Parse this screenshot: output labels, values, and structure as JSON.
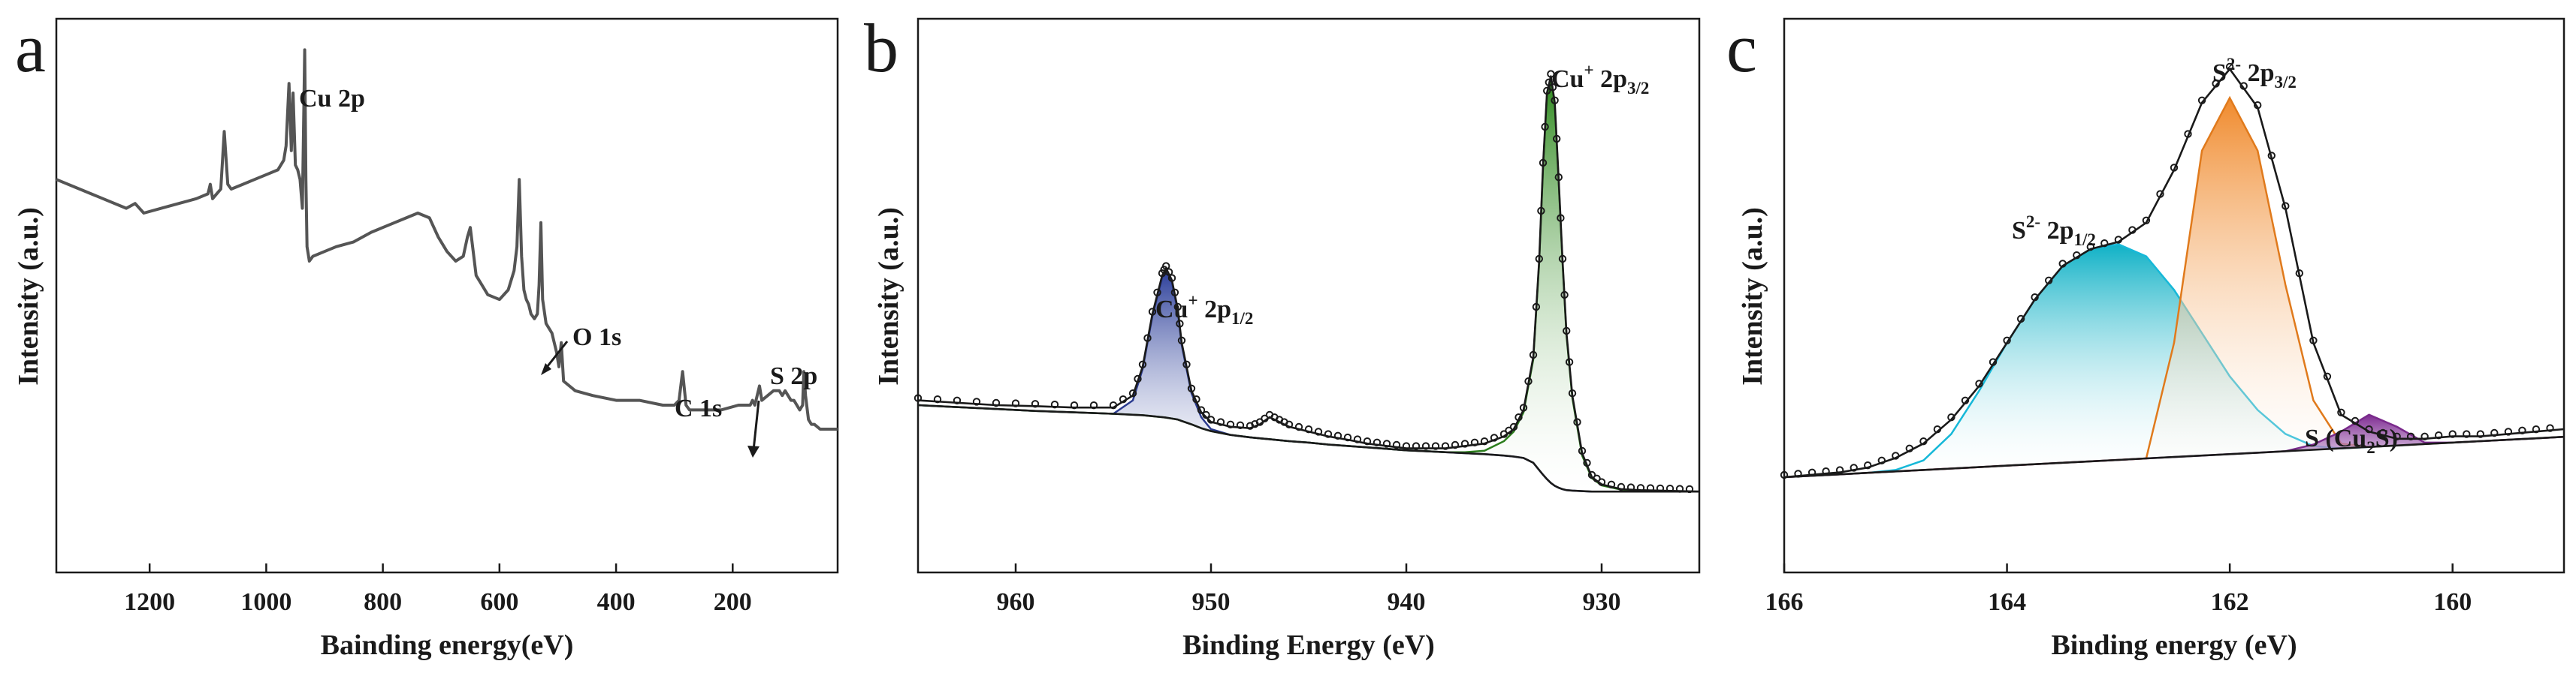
{
  "colors": {
    "survey_line": "#555555",
    "blue_fill": "#3a4fa8",
    "green_fill": "#3c9a2a",
    "cyan_fill": "#17b6c9",
    "orange_fill": "#f08a2c",
    "purple_fill": "#8a3a9c"
  },
  "chart_data": [
    {
      "panel": "a",
      "type": "line",
      "title": "",
      "xlabel": "Bainding energy(eV)",
      "ylabel": "Intensity (a.u.)",
      "xlim": [
        1360,
        20
      ],
      "ylim": [
        0,
        100
      ],
      "xticks": [
        1200,
        1000,
        800,
        600,
        400,
        200
      ],
      "xtick_labels": [
        "1200",
        "1000",
        "800",
        "600",
        "400",
        "200"
      ],
      "series": [
        {
          "name": "Survey spectrum",
          "x": [
            1360,
            1320,
            1280,
            1240,
            1225,
            1210,
            1180,
            1150,
            1120,
            1100,
            1096,
            1092,
            1085,
            1078,
            1072,
            1066,
            1060,
            1040,
            1020,
            1000,
            980,
            970,
            966,
            961,
            957,
            954,
            950,
            946,
            942,
            938,
            934,
            932,
            930,
            926,
            920,
            900,
            880,
            850,
            820,
            800,
            780,
            760,
            740,
            720,
            705,
            690,
            675,
            662,
            655,
            650,
            645,
            640,
            630,
            620,
            600,
            585,
            575,
            570,
            566,
            562,
            558,
            554,
            550,
            546,
            540,
            535,
            532,
            529,
            526,
            520,
            510,
            506,
            502,
            498,
            494,
            490,
            470,
            440,
            400,
            360,
            320,
            300,
            292,
            286,
            280,
            274,
            268,
            250,
            220,
            190,
            170,
            166,
            162,
            158,
            154,
            150,
            140,
            130,
            120,
            115,
            110,
            105,
            100,
            95,
            90,
            85,
            80,
            78,
            75,
            72,
            70,
            65,
            60,
            50,
            40,
            30,
            20
          ],
          "y": [
            72,
            70,
            68,
            66,
            67,
            65,
            66,
            67,
            68,
            69,
            71,
            68,
            69,
            70,
            82,
            71,
            70,
            71,
            72,
            73,
            74,
            76,
            79,
            92,
            78,
            90,
            75,
            74,
            72,
            66,
            99,
            72,
            58,
            55,
            56,
            57,
            58,
            59,
            61,
            62,
            63,
            64,
            65,
            64,
            60,
            57,
            55,
            56,
            60,
            62,
            57,
            52,
            50,
            48,
            47,
            49,
            53,
            58,
            72,
            56,
            49,
            47,
            46,
            44,
            43,
            44,
            50,
            63,
            47,
            42,
            40,
            38,
            36,
            33,
            38,
            30,
            28,
            27,
            26,
            26,
            25,
            25,
            26,
            32,
            25,
            24,
            24,
            24,
            24,
            25,
            25,
            26,
            25,
            27,
            29,
            26,
            27,
            28,
            28,
            27,
            28,
            27,
            26,
            26,
            25,
            24,
            25,
            32,
            27,
            24,
            22,
            21,
            21,
            20,
            20,
            20,
            20
          ],
          "color": "#555555"
        }
      ],
      "annotations": [
        {
          "text": "Cu 2p",
          "x": 932,
          "y": 99
        },
        {
          "text": "O 1s",
          "x": 531,
          "y": 63
        },
        {
          "text": "C 1s",
          "x": 285,
          "y": 32
        },
        {
          "text": "S 2p",
          "x": 162,
          "y": 29
        }
      ]
    },
    {
      "panel": "b",
      "type": "line",
      "title": "",
      "xlabel": "Binding Energy (eV)",
      "ylabel": "Intensity (a.u.)",
      "xlim": [
        965,
        925
      ],
      "ylim": [
        0,
        100
      ],
      "xticks": [
        960,
        950,
        940,
        930
      ],
      "xtick_labels": [
        "960",
        "950",
        "940",
        "930"
      ],
      "x": [
        965,
        963,
        961,
        959,
        957,
        955,
        954,
        953.5,
        953,
        952.5,
        952.3,
        952,
        951.7,
        951.5,
        951,
        950.5,
        950,
        949,
        948,
        947.5,
        947,
        946.5,
        946,
        945,
        944,
        943,
        942,
        941,
        940,
        939,
        938,
        937,
        936,
        935,
        934.5,
        934,
        933.5,
        933.2,
        933,
        932.8,
        932.6,
        932.4,
        932.2,
        932,
        931.8,
        931.5,
        931,
        930.5,
        930,
        929,
        928,
        927,
        926,
        925
      ],
      "series": [
        {
          "name": "Experimental",
          "style": "dots",
          "y": [
            26,
            25.5,
            25,
            24.8,
            24.5,
            24.5,
            27,
            33,
            44,
            52,
            53.5,
            51,
            45,
            38,
            28,
            23.5,
            21.5,
            20.5,
            20.2,
            21,
            22.5,
            21.5,
            20.5,
            19.5,
            18.5,
            17.8,
            17,
            16.5,
            16,
            16,
            16,
            16.5,
            17,
            18.5,
            20,
            24,
            35,
            55,
            75,
            90,
            93.5,
            88,
            72,
            55,
            40,
            27,
            15,
            10,
            8.5,
            7.5,
            7.3,
            7.2,
            7.1,
            7
          ]
        },
        {
          "name": "Fitted envelope",
          "style": "line",
          "y": [
            26,
            25.5,
            25,
            24.8,
            24.5,
            24.5,
            27,
            33,
            44,
            52,
            53.5,
            51,
            45,
            38,
            28,
            23.5,
            21.5,
            20.5,
            20.2,
            21,
            22.5,
            21.5,
            20.5,
            19.5,
            18.5,
            17.8,
            17,
            16.5,
            16,
            16,
            16,
            16.5,
            17,
            18.5,
            20,
            24,
            35,
            55,
            75,
            90,
            93.5,
            88,
            72,
            55,
            40,
            27,
            15,
            10,
            8.5,
            7.5,
            7.3,
            7.2,
            7.1,
            7
          ]
        },
        {
          "name": "Background",
          "style": "line",
          "y": [
            25,
            24.6,
            24.2,
            23.8,
            23.5,
            23.2,
            23,
            22.9,
            22.7,
            22.5,
            22.4,
            22.2,
            22,
            21.7,
            21,
            20.2,
            19.6,
            18.8,
            18.3,
            18.1,
            17.9,
            17.7,
            17.5,
            17.2,
            16.8,
            16.5,
            16.2,
            15.9,
            15.6,
            15.4,
            15.2,
            15,
            14.8,
            14.5,
            14.3,
            14,
            13,
            11.5,
            10.5,
            9.6,
            8.8,
            8.2,
            7.8,
            7.5,
            7.3,
            7.2,
            7.1,
            7,
            7,
            7,
            7,
            7,
            7,
            7
          ]
        },
        {
          "name": "Cu+ 2p1/2",
          "style": "fill",
          "color": "#3a4fa8",
          "y": [
            25,
            24.6,
            24.2,
            23.8,
            23.5,
            23.2,
            26,
            32.5,
            43.5,
            51.5,
            53,
            50.5,
            44.5,
            37.5,
            27.5,
            22.5,
            20,
            18.8,
            18.3,
            18.1,
            17.9,
            17.7,
            17.5,
            17.2,
            16.8,
            16.5,
            16.2,
            15.9,
            15.6,
            15.4,
            15.2,
            15,
            14.8,
            14.5,
            14.3,
            14,
            13,
            11.5,
            10.5,
            9.6,
            8.8,
            8.2,
            7.8,
            7.5,
            7.3,
            7.2,
            7.1,
            7,
            7,
            7,
            7,
            7,
            7,
            7
          ]
        },
        {
          "name": "Cu+ 2p3/2",
          "style": "fill",
          "color": "#3c9a2a",
          "y": [
            25,
            24.6,
            24.2,
            23.8,
            23.5,
            23.2,
            23,
            22.9,
            22.7,
            22.5,
            22.4,
            22.2,
            22,
            21.7,
            21,
            20.2,
            19.6,
            18.8,
            18.3,
            18.1,
            17.9,
            17.7,
            17.5,
            17.2,
            16.8,
            16.5,
            16.2,
            15.9,
            15.6,
            15.4,
            15.2,
            15.2,
            15.5,
            17.5,
            19.5,
            23.5,
            34.5,
            54.5,
            74.5,
            89.5,
            93,
            87.5,
            71.5,
            54.5,
            39.5,
            26.5,
            14.5,
            9.8,
            8.3,
            7.4,
            7.2,
            7.1,
            7,
            7
          ]
        }
      ],
      "annotations": [
        {
          "text": "Cu",
          "sup": "+",
          "core": " 2p",
          "sub": "1/2",
          "x": 952.2,
          "y": 53
        },
        {
          "text": "Cu",
          "sup": "+",
          "core": " 2p",
          "sub": "3/2",
          "x": 932.6,
          "y": 93
        }
      ]
    },
    {
      "panel": "c",
      "type": "line",
      "title": "",
      "xlabel": "Binding energy (eV)",
      "ylabel": "Intensity (a.u.)",
      "xlim": [
        166,
        159
      ],
      "ylim": [
        0,
        100
      ],
      "xticks": [
        166,
        164,
        162,
        160
      ],
      "xtick_labels": [
        "166",
        "164",
        "162",
        "160"
      ],
      "x": [
        166,
        165.75,
        165.5,
        165.25,
        165,
        164.75,
        164.5,
        164.25,
        164,
        163.75,
        163.5,
        163.25,
        163,
        162.75,
        162.5,
        162.25,
        162,
        161.75,
        161.5,
        161.25,
        161,
        160.75,
        160.5,
        160.25,
        160,
        159.75,
        159.5,
        159.25,
        159
      ],
      "series": [
        {
          "name": "Experimental",
          "style": "dots",
          "y": [
            10,
            10.5,
            11,
            12,
            14,
            17,
            22,
            29,
            38,
            47,
            54,
            57.5,
            59,
            63,
            74,
            88,
            95,
            87,
            66,
            38,
            23,
            19.5,
            18,
            18,
            18.5,
            18.5,
            19,
            19.5,
            20
          ]
        },
        {
          "name": "Fitted envelope",
          "style": "line",
          "y": [
            10,
            10.5,
            11,
            12,
            14,
            17,
            22,
            29,
            38,
            47,
            54,
            57.5,
            59,
            63,
            74,
            88,
            95,
            87,
            66,
            38,
            23,
            19.5,
            18,
            18,
            18.5,
            18.5,
            19,
            19.5,
            20
          ]
        },
        {
          "name": "Background",
          "style": "line",
          "y": [
            10,
            10.3,
            10.6,
            10.9,
            11.2,
            11.5,
            11.8,
            12.1,
            12.4,
            12.7,
            13,
            13.3,
            13.6,
            13.9,
            14.2,
            14.5,
            14.8,
            15.1,
            15.4,
            15.7,
            16,
            16.3,
            16.6,
            16.9,
            17.2,
            17.5,
            17.8,
            18.1,
            18.4
          ]
        },
        {
          "name": "S2- 2p1/2",
          "style": "fill",
          "color": "#17b6c9",
          "y": [
            10,
            10.3,
            10.6,
            10.9,
            11.5,
            13.5,
            19,
            28,
            38,
            47,
            54,
            57.5,
            58.5,
            56,
            49,
            40,
            31,
            24,
            19,
            16.5,
            16,
            16.3,
            16.6,
            16.9,
            17.2,
            17.5,
            17.8,
            18.1,
            18.4
          ]
        },
        {
          "name": "S2- 2p3/2",
          "style": "fill",
          "color": "#f08a2c",
          "y": [
            10,
            10.3,
            10.6,
            10.9,
            11.2,
            11.5,
            11.8,
            12.1,
            12.4,
            12.7,
            13,
            13.3,
            13.6,
            13.9,
            38,
            78,
            89,
            78,
            50,
            26,
            17,
            16.3,
            16.6,
            16.9,
            17.2,
            17.5,
            17.8,
            18.1,
            18.4
          ]
        },
        {
          "name": "S (Cu2S)",
          "style": "fill",
          "color": "#8a3a9c",
          "y": [
            10,
            10.3,
            10.6,
            10.9,
            11.2,
            11.5,
            11.8,
            12.1,
            12.4,
            12.7,
            13,
            13.3,
            13.6,
            13.9,
            14.2,
            14.5,
            14.8,
            15.1,
            15.4,
            16.8,
            19.5,
            23,
            20.5,
            17.2,
            17.2,
            17.5,
            17.8,
            18.1,
            18.4
          ]
        }
      ],
      "annotations": [
        {
          "text": "S",
          "sup": "2-",
          "core": " 2p",
          "sub": "1/2",
          "x": 163.5,
          "y": 62
        },
        {
          "text": "S",
          "sup": "2-",
          "core": " 2p",
          "sub": "3/2",
          "x": 161.8,
          "y": 98
        },
        {
          "text": "S (Cu",
          "sup": "",
          "core": "",
          "sub": "2",
          "tail": "S)",
          "x": 160.2,
          "y": 25
        }
      ]
    }
  ],
  "panels": {
    "a_letter": "a",
    "b_letter": "b",
    "c_letter": "c"
  },
  "annotations_text": {
    "a_cu2p": "Cu 2p",
    "a_o1s": "O 1s",
    "a_c1s": "C 1s",
    "a_s2p": "S 2p",
    "b_cu_left": "Cu",
    "b_sup_plus": "+",
    "b_core": " 2p",
    "b_sub_12": "1/2",
    "b_sub_32": "3/2",
    "c_s": "S",
    "c_sup": "2-",
    "c_core": " 2p",
    "c_sub_12": "1/2",
    "c_sub_32": "3/2",
    "c_cu2s_a": "S (Cu",
    "c_cu2s_sub": "2",
    "c_cu2s_b": "S)"
  }
}
